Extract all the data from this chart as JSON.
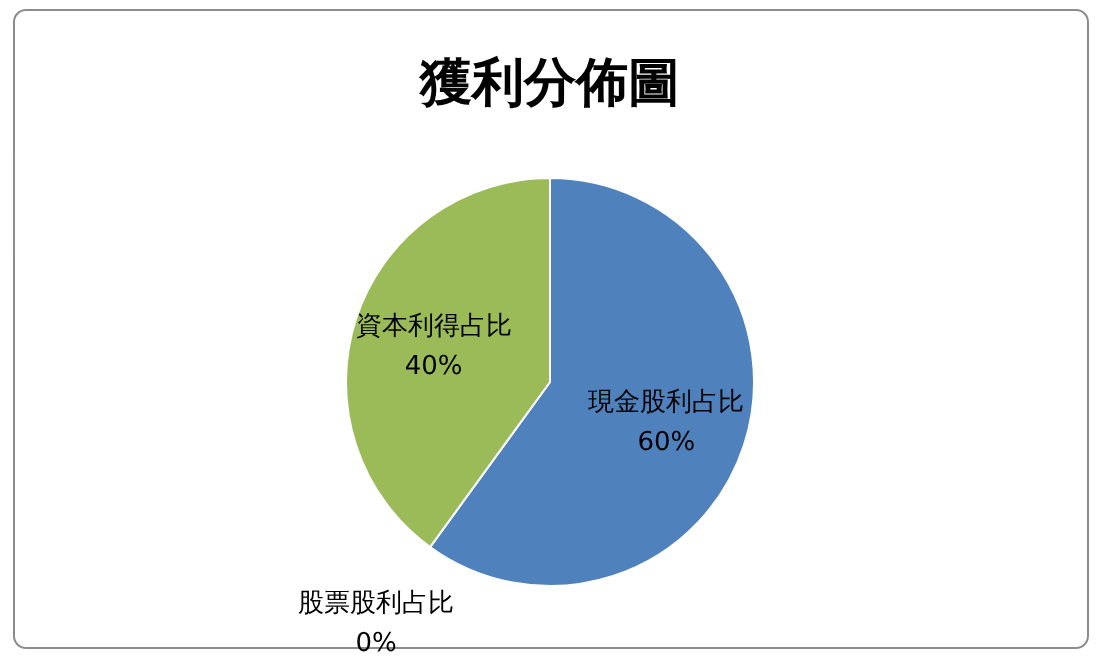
{
  "chart_data": {
    "type": "pie",
    "title": "獲利分佈圖",
    "categories": [
      "現金股利占比",
      "股票股利占比",
      "資本利得占比"
    ],
    "values": [
      60,
      0,
      40
    ],
    "colors": [
      "#4f81bd",
      "#c0504d",
      "#9bbb59"
    ],
    "value_labels": [
      "60%",
      "0%",
      "40%"
    ]
  }
}
